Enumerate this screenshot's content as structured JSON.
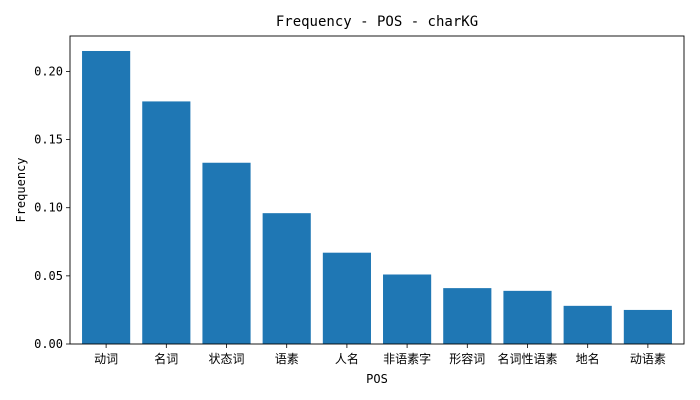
{
  "chart_data": {
    "type": "bar",
    "title": "Frequency - POS - charKG",
    "xlabel": "POS",
    "ylabel": "Frequency",
    "categories": [
      "动词",
      "名词",
      "状态词",
      "语素",
      "人名",
      "非语素字",
      "形容词",
      "名词性语素",
      "地名",
      "动语素"
    ],
    "values": [
      0.215,
      0.178,
      0.133,
      0.096,
      0.067,
      0.051,
      0.041,
      0.039,
      0.028,
      0.025
    ],
    "yticks": [
      "0.00",
      "0.05",
      "0.10",
      "0.15",
      "0.20"
    ],
    "ylim": [
      0,
      0.226
    ],
    "bar_color": "#1f77b4",
    "grid": false,
    "legend": "none"
  }
}
